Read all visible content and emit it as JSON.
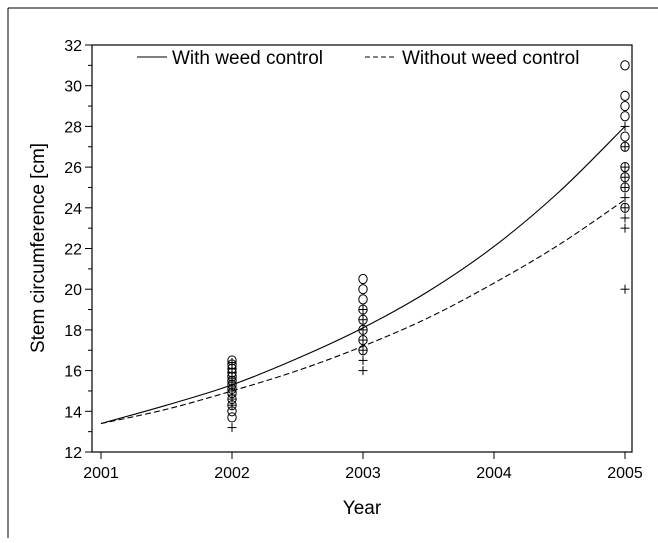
{
  "chart_data": {
    "type": "scatter",
    "title": "",
    "xlabel": "Year",
    "ylabel": "Stem circumference [cm]",
    "xlim": [
      2001,
      2005.3
    ],
    "ylim": [
      12,
      32
    ],
    "xticks": [
      "2001",
      "2002",
      "2003",
      "2004",
      "2005"
    ],
    "yticks": [
      "12",
      "14",
      "16",
      "18",
      "20",
      "22",
      "24",
      "26",
      "28",
      "30",
      "32"
    ],
    "grid": false,
    "legend_position": "top",
    "series": [
      {
        "name": "With weed control",
        "marker": "circle",
        "line": "solid",
        "points": [
          [
            2002,
            13.7
          ],
          [
            2002,
            14.0
          ],
          [
            2002,
            14.3
          ],
          [
            2002,
            14.6
          ],
          [
            2002,
            14.9
          ],
          [
            2002,
            15.1
          ],
          [
            2002,
            15.3
          ],
          [
            2002,
            15.5
          ],
          [
            2002,
            15.7
          ],
          [
            2002,
            15.9
          ],
          [
            2002,
            16.1
          ],
          [
            2002,
            16.3
          ],
          [
            2002,
            16.5
          ],
          [
            2003,
            17.0
          ],
          [
            2003,
            17.5
          ],
          [
            2003,
            18.0
          ],
          [
            2003,
            18.5
          ],
          [
            2003,
            19.0
          ],
          [
            2003,
            19.5
          ],
          [
            2003,
            20.0
          ],
          [
            2003,
            20.5
          ],
          [
            2005,
            24.0
          ],
          [
            2005,
            25.0
          ],
          [
            2005,
            25.5
          ],
          [
            2005,
            26.0
          ],
          [
            2005,
            27.0
          ],
          [
            2005,
            27.5
          ],
          [
            2005,
            28.5
          ],
          [
            2005,
            29.0
          ],
          [
            2005,
            29.5
          ],
          [
            2005,
            31.0
          ]
        ],
        "curve": [
          [
            2001,
            13.4
          ],
          [
            2001.5,
            14.3
          ],
          [
            2002,
            15.3
          ],
          [
            2002.5,
            16.6
          ],
          [
            2003,
            18.1
          ],
          [
            2003.5,
            19.9
          ],
          [
            2004,
            22.1
          ],
          [
            2004.5,
            24.8
          ],
          [
            2005,
            28.0
          ]
        ]
      },
      {
        "name": "Without weed control",
        "marker": "plus",
        "line": "dashed",
        "points": [
          [
            2002,
            13.2
          ],
          [
            2002,
            14.3
          ],
          [
            2002,
            14.6
          ],
          [
            2002,
            14.8
          ],
          [
            2002,
            15.0
          ],
          [
            2002,
            15.2
          ],
          [
            2002,
            15.4
          ],
          [
            2002,
            15.6
          ],
          [
            2002,
            15.9
          ],
          [
            2002,
            16.1
          ],
          [
            2002,
            16.4
          ],
          [
            2003,
            16.0
          ],
          [
            2003,
            16.5
          ],
          [
            2003,
            17.0
          ],
          [
            2003,
            17.5
          ],
          [
            2003,
            18.0
          ],
          [
            2003,
            18.5
          ],
          [
            2003,
            19.0
          ],
          [
            2005,
            20.0
          ],
          [
            2005,
            23.0
          ],
          [
            2005,
            23.5
          ],
          [
            2005,
            24.0
          ],
          [
            2005,
            24.5
          ],
          [
            2005,
            25.0
          ],
          [
            2005,
            25.5
          ],
          [
            2005,
            26.0
          ],
          [
            2005,
            27.0
          ],
          [
            2005,
            28.0
          ]
        ],
        "curve": [
          [
            2001,
            13.4
          ],
          [
            2001.5,
            14.1
          ],
          [
            2002,
            15.0
          ],
          [
            2002.5,
            16.0
          ],
          [
            2003,
            17.2
          ],
          [
            2003.5,
            18.6
          ],
          [
            2004,
            20.3
          ],
          [
            2004.5,
            22.2
          ],
          [
            2005,
            24.4
          ]
        ]
      }
    ]
  }
}
